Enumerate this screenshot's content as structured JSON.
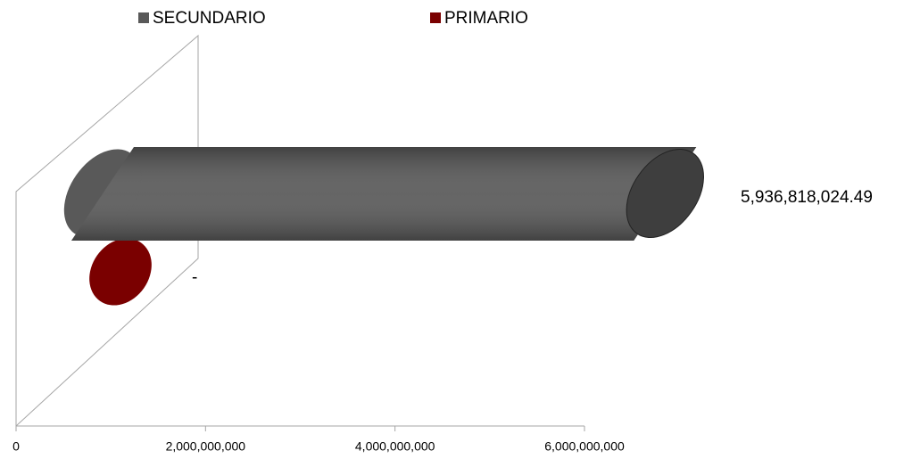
{
  "chart_data": {
    "type": "bar3d",
    "orientation": "horizontal",
    "categories": [
      null
    ],
    "series": [
      {
        "name": "SECUNDARIO",
        "color": "#595959",
        "values": [
          5936818024.49
        ],
        "value_labels": [
          "5,936,818,024.49"
        ]
      },
      {
        "name": "PRIMARIO",
        "color": "#7a0000",
        "values": [
          0
        ],
        "value_labels": [
          "-"
        ]
      }
    ],
    "xlim": [
      0,
      6000000000
    ],
    "xticks": [
      0,
      {
        "value": 2000000000,
        "label": "2,000,000,000"
      },
      {
        "value": 4000000000,
        "label": "4,000,000,000"
      },
      {
        "value": 6000000000,
        "label": "6,000,000,000"
      }
    ],
    "legend": "top"
  }
}
